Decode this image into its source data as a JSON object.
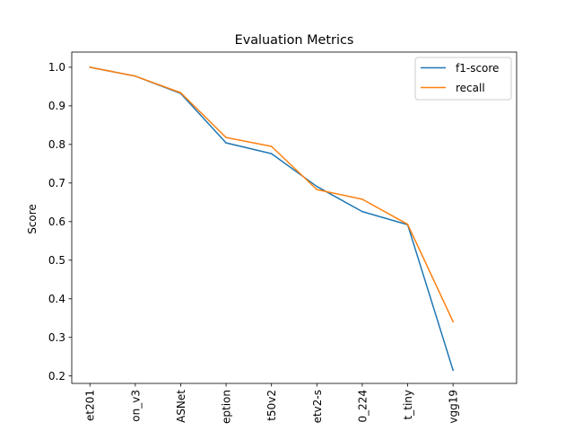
{
  "chart_data": {
    "type": "line",
    "title": "Evaluation Metrics",
    "xlabel": "",
    "ylabel": "Score",
    "categories": [
      "et201",
      "on_v3",
      "ASNet",
      "eption",
      "t50v2",
      "etv2-s",
      "0_224",
      "t_tiny",
      "vgg19"
    ],
    "series": [
      {
        "name": "f1-score",
        "color": "#1f77b4",
        "values": [
          1.0,
          0.977,
          0.932,
          0.804,
          0.776,
          0.691,
          0.626,
          0.592,
          0.215
        ]
      },
      {
        "name": "recall",
        "color": "#ff7f0e",
        "values": [
          1.0,
          0.977,
          0.934,
          0.818,
          0.795,
          0.683,
          0.658,
          0.593,
          0.341
        ]
      }
    ],
    "ylim": [
      0.1807,
      1.0393
    ],
    "yticks": [
      "0.2",
      "0.3",
      "0.4",
      "0.5",
      "0.6",
      "0.7",
      "0.8",
      "0.9",
      "1.0"
    ],
    "grid": false,
    "legend": "top-right"
  }
}
